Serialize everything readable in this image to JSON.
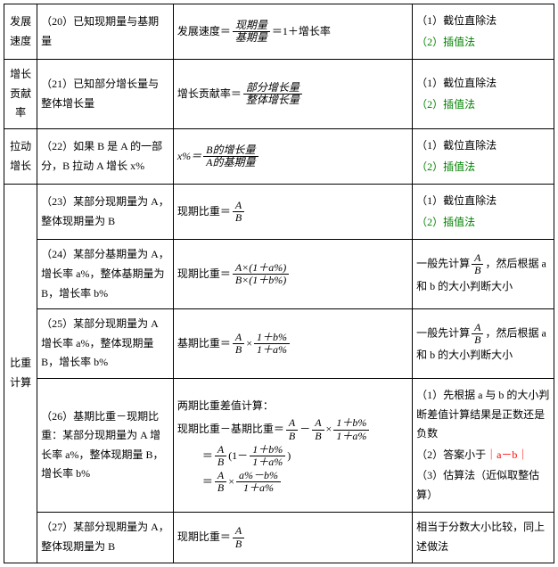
{
  "rows": {
    "r20": {
      "cat": "发展速度",
      "cond": "（20）已知现期量与基期量",
      "f_pre": "发展速度＝",
      "f_num": "现期量",
      "f_den": "基期量",
      "f_post": "＝1＋增长率",
      "m1": "（1）截位直除法",
      "m2": "（2）插值法"
    },
    "r21": {
      "cat": "增长贡献率",
      "cond": "（21）已知部分增长量与整体增长量",
      "f_pre": "增长贡献率＝",
      "f_num": "部分增长量",
      "f_den": "整体增长量",
      "m1": "（1）截位直除法",
      "m2": "（2）插值法"
    },
    "r22": {
      "cat": "拉动增长",
      "cond": "（22）如果 B 是 A 的一部分，B 拉动 A 增长 x%",
      "f_pre": "x%＝",
      "f_num": "B的增长量",
      "f_den": "A的基期量",
      "m1": "（1）截位直除法",
      "m2": "（2）插值法"
    },
    "r23": {
      "cat": "比重计算",
      "cond": "（23）某部分现期量为 A，整体现期量为 B",
      "f_pre": "现期比重＝",
      "f_num": "A",
      "f_den": "B",
      "m1": "（1）截位直除法",
      "m2": "（2）插值法"
    },
    "r24": {
      "cond": "（24）某部分基期量为 A，增长率 a%，整体基期量为 B，增长率 b%",
      "f_pre": "现期比重＝",
      "f_num": "A×(1＋a%)",
      "f_den": "B×(1＋b%)",
      "m_pre": "一般先计算",
      "m_num": "A",
      "m_den": "B",
      "m_post": "，然后根据 a 和 b 的大小判断大小"
    },
    "r25": {
      "cond": "（25）某部分现期量为 A 增长率 a%，整体现期量 B，增长率 b%",
      "f_pre": "基期比重＝",
      "f1_num": "A",
      "f1_den": "B",
      "times": "×",
      "f2_num": "1＋b%",
      "f2_den": "1＋a%",
      "m_pre": "一般先计算",
      "m_num": "A",
      "m_den": "B",
      "m_post": "，然后根据 a 和 b 的大小判断大小"
    },
    "r26": {
      "cond": "（26）基期比重－现期比重：某部分现期量为 A 增长率 a%，整体现期量 B，增长率 b%",
      "title": "两期比重差值计算：",
      "line1_pre": "现期比重－基期比重＝",
      "fa_num": "A",
      "fa_den": "B",
      "minus": "－",
      "fb_num": "A",
      "fb_den": "B",
      "times": "×",
      "fc_num": "1＋b%",
      "fc_den": "1＋a%",
      "line2_eq": "＝",
      "fd_num": "A",
      "fd_den": "B",
      "paren_open": "(1－",
      "fe_num": "1＋b%",
      "fe_den": "1＋a%",
      "paren_close": ")",
      "line3_eq": "＝",
      "ff_num": "A",
      "ff_den": "B",
      "fg_num": "a%－b%",
      "fg_den": "1＋a%",
      "m1": "（1）先根据 a 与 b 的大小判断差值计算结果是正数还是负数",
      "m2_pre": "（2）答案小于",
      "m2_mid": "｜a－b｜",
      "m3": "（3）估算法（近似取整估算）"
    },
    "r27": {
      "cond": "（27）某部分现期量为 A，整体现期量为 B",
      "f_pre": "现期比重＝",
      "f_num": "A",
      "f_den": "B",
      "m": "相当于分数大小比较，同上述做法"
    }
  }
}
